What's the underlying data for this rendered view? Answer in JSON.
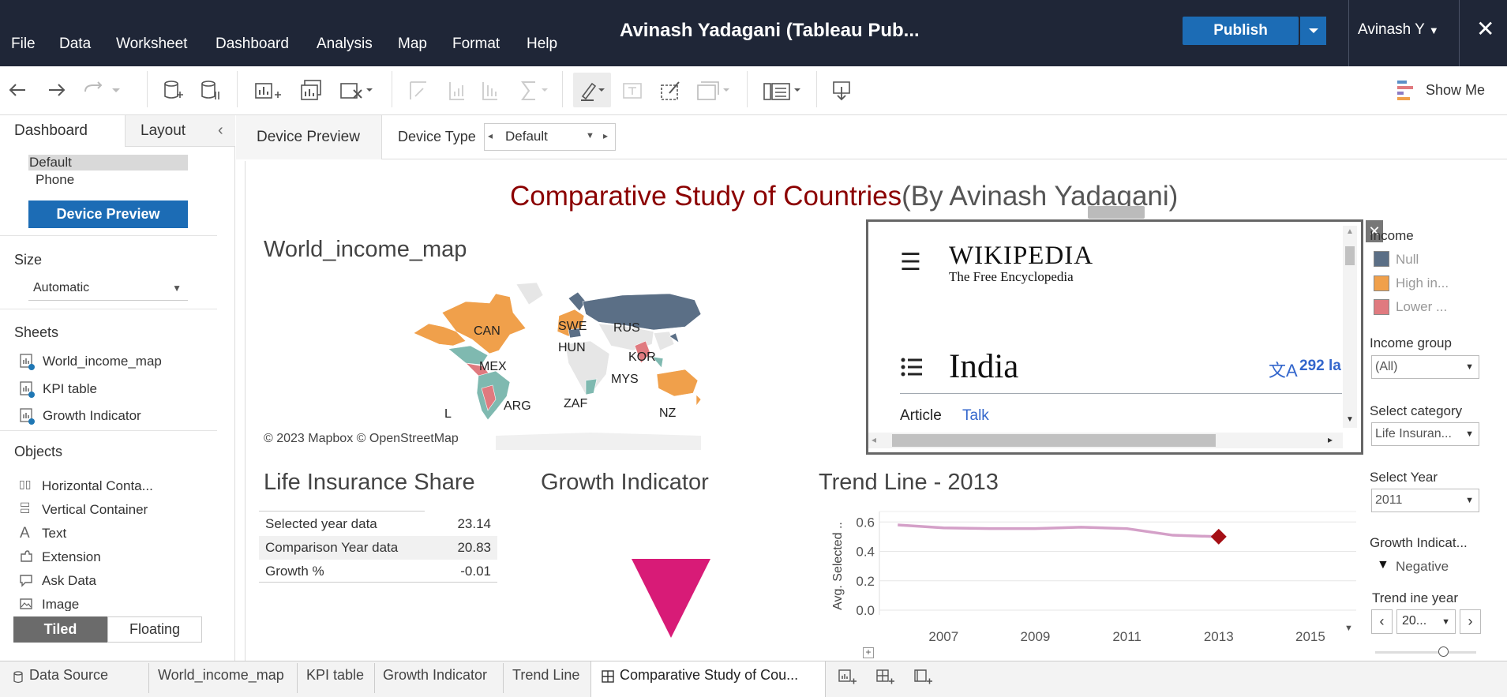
{
  "menu": [
    "File",
    "Data",
    "Worksheet",
    "Dashboard",
    "Analysis",
    "Map",
    "Format",
    "Help"
  ],
  "app_title": "Avinash Yadagani (Tableau Pub...",
  "publish_label": "Publish",
  "user_label": "Avinash Y",
  "show_me_label": "Show Me",
  "left_panel": {
    "tabs": [
      "Dashboard",
      "Layout"
    ],
    "device_options": [
      "Default",
      "Phone"
    ],
    "device_preview_button": "Device Preview",
    "size_heading": "Size",
    "size_value": "Automatic",
    "sheets_heading": "Sheets",
    "sheets": [
      "World_income_map",
      "KPI table",
      "Growth Indicator"
    ],
    "objects_heading": "Objects",
    "objects": [
      "Horizontal Conta...",
      "Vertical Container",
      "Text",
      "Extension",
      "Ask Data",
      "Image"
    ],
    "tiled_label": "Tiled",
    "floating_label": "Floating"
  },
  "device_bar": {
    "tab_label": "Device Preview",
    "device_type_label": "Device Type",
    "device_type_value": "Default"
  },
  "dashboard": {
    "title_main": "Comparative Study of Countries",
    "title_by": "(By Avinash Yadagani)",
    "map": {
      "title": "World_income_map",
      "labels": [
        "CAN",
        "SWE",
        "RUS",
        "HUN",
        "KOR",
        "MEX",
        "MYS",
        "ARG",
        "ZAF",
        "NZ",
        "L"
      ],
      "attribution": "© 2023 Mapbox  © OpenStreetMap"
    },
    "wiki": {
      "brand": "WIKIPEDIA",
      "tagline": "The Free Encyclopedia",
      "page_title": "India",
      "languages": "292 la",
      "tab_article": "Article",
      "tab_talk": "Talk"
    },
    "legend": {
      "title": "Income",
      "items": [
        {
          "label": "Null",
          "color": "#5b6f86"
        },
        {
          "label": "High in...",
          "color": "#f0a04b"
        },
        {
          "label": "Lower ...",
          "color": "#e07a7f"
        }
      ]
    },
    "filters": {
      "income_group_label": "Income group",
      "income_group_value": "(All)",
      "category_label": "Select category",
      "category_value": "Life Insuran...",
      "year_label": "Select Year",
      "year_value": "2011",
      "growth_label": "Growth Indicat...",
      "growth_value": "Negative",
      "trend_year_label": "Trend ine year",
      "trend_year_value": "20..."
    },
    "kpi": {
      "title": "Life Insurance Share",
      "rows": [
        {
          "label": "Selected year data",
          "value": "23.14"
        },
        {
          "label": "Comparison Year data",
          "value": "20.83"
        },
        {
          "label": "Growth %",
          "value": "-0.01"
        }
      ]
    },
    "growth_title": "Growth Indicator",
    "growth_color": "#d81b77"
  },
  "chart_data": {
    "type": "line",
    "title": "Trend Line - 2013",
    "ylabel": "Avg. Selected ..",
    "xlabel": "",
    "x": [
      2006,
      2007,
      2008,
      2009,
      2010,
      2011,
      2012,
      2013
    ],
    "series": [
      {
        "values": [
          0.58,
          0.56,
          0.555,
          0.555,
          0.565,
          0.555,
          0.51,
          0.5
        ]
      }
    ],
    "highlight": {
      "x": 2013,
      "y": 0.5
    },
    "xticks": [
      2007,
      2009,
      2011,
      2013,
      2015
    ],
    "yticks": [
      0.0,
      0.2,
      0.4,
      0.6
    ],
    "ylim": [
      0,
      0.65
    ],
    "xlim": [
      2005.6,
      2016
    ],
    "line_color": "#d4a0c8",
    "marker_color": "#a50f15"
  },
  "bottom_tabs": [
    "Data Source",
    "World_income_map",
    "KPI table",
    "Growth Indicator",
    "Trend Line",
    "Comparative Study of Cou..."
  ]
}
